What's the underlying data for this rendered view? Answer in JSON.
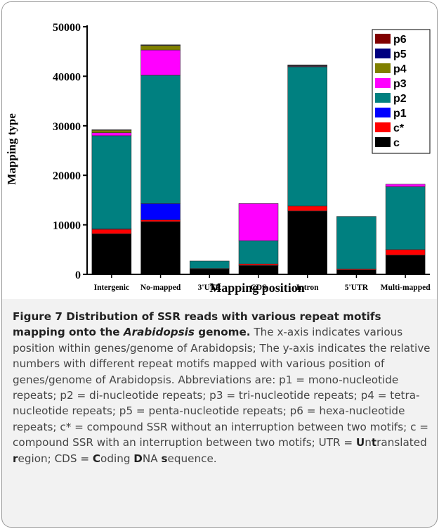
{
  "chart_data": {
    "type": "stacked_bar",
    "xlabel": "Mapping position",
    "ylabel": "Mapping type",
    "categories": [
      "Intergenic",
      "No-mapped",
      "3'UTR",
      "CDS",
      "Intron",
      "5'UTR",
      "Multi-mapped"
    ],
    "series": [
      {
        "name": "c",
        "color": "#000000",
        "values": [
          8200,
          10650,
          1100,
          1800,
          12800,
          900,
          3900
        ]
      },
      {
        "name": "c*",
        "color": "#ff0000",
        "values": [
          900,
          350,
          100,
          300,
          1000,
          200,
          1100
        ]
      },
      {
        "name": "p1",
        "color": "#0000ff",
        "values": [
          100,
          3300,
          0,
          0,
          0,
          0,
          0
        ]
      },
      {
        "name": "p2",
        "color": "#008080",
        "values": [
          18800,
          25900,
          1500,
          4700,
          28100,
          10600,
          12700
        ]
      },
      {
        "name": "p3",
        "color": "#ff00ff",
        "values": [
          600,
          5100,
          0,
          7500,
          100,
          0,
          500
        ]
      },
      {
        "name": "p4",
        "color": "#808000",
        "values": [
          500,
          900,
          0,
          0,
          100,
          0,
          0
        ]
      },
      {
        "name": "p5",
        "color": "#000080",
        "values": [
          50,
          100,
          0,
          0,
          100,
          0,
          0
        ]
      },
      {
        "name": "p6",
        "color": "#800000",
        "values": [
          50,
          50,
          0,
          0,
          100,
          0,
          0
        ]
      }
    ],
    "ylim": [
      0,
      50000
    ],
    "yticks": [
      0,
      10000,
      20000,
      30000,
      40000,
      50000
    ],
    "legend": "top-right"
  },
  "caption": [
    {
      "text": "Figure 7 Distribution of SSR reads with various repeat motifs mapping onto the ",
      "style": "bold"
    },
    {
      "text": "Arabidopsis",
      "style": "bold-italic"
    },
    {
      "text": " genome.",
      "style": "bold"
    },
    {
      "text": " The x-axis indicates various position within genes/genome of Arabidopsis; The y-axis indicates the relative numbers with different repeat motifs mapped with various position of genes/genome of Arabidopsis. Abbreviations are: p1 = mono-nucleotide repeats; p2 = di-nucleotide repeats; p3 = tri-nucleotide repeats; p4 = tetra-nucleotide repeats; p5 = penta-nucleotide repeats; p6 = hexa-nucleotide repeats; c* = compound SSR without an interruption between two motifs; c = compound SSR with an interruption between two motifs; UTR = "
    },
    {
      "text": "U",
      "style": "bold"
    },
    {
      "text": "n"
    },
    {
      "text": "t",
      "style": "bold"
    },
    {
      "text": "ranslated "
    },
    {
      "text": "r",
      "style": "bold"
    },
    {
      "text": "egion; CDS = "
    },
    {
      "text": "C",
      "style": "bold"
    },
    {
      "text": "oding "
    },
    {
      "text": "D",
      "style": "bold"
    },
    {
      "text": "NA "
    },
    {
      "text": "s",
      "style": "bold"
    },
    {
      "text": "equence."
    }
  ]
}
